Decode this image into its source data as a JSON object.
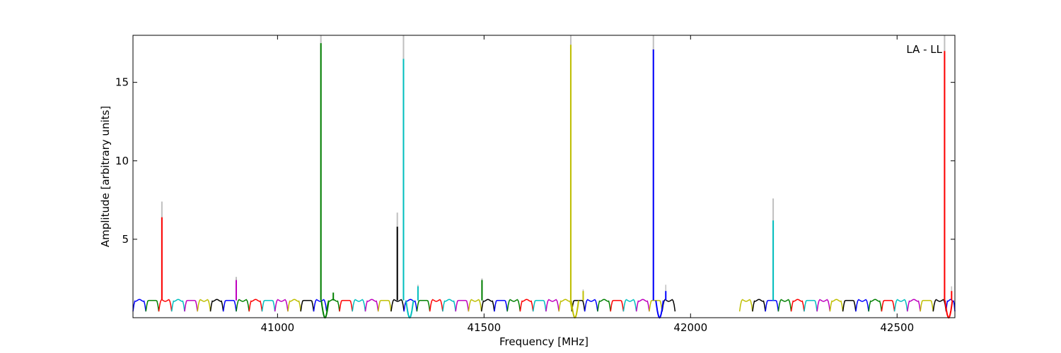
{
  "chart_data": {
    "type": "line",
    "title": "",
    "annotation": "LA - LL",
    "annotation_position": "top-right",
    "xlabel": "Frequency [MHz]",
    "ylabel": "Amplitude [arbitrary units]",
    "xlim": [
      40650,
      42640
    ],
    "ylim": [
      0,
      18
    ],
    "xticks": [
      41000,
      41500,
      42000,
      42500
    ],
    "xtick_labels": [
      "41000",
      "41500",
      "42000",
      "42500"
    ],
    "yticks": [
      5,
      10,
      15
    ],
    "ytick_labels": [
      "5",
      "10",
      "15"
    ],
    "grid": false,
    "legend": "none",
    "colors": {
      "axes": "#000000",
      "gray_overlay": "#bfbfbf",
      "series_cycle": [
        "#0000ff",
        "#008000",
        "#ff0000",
        "#00bfbf",
        "#bf00bf",
        "#bfbf00",
        "#000000"
      ]
    },
    "baseline": {
      "channel_width_mhz": 31.25,
      "high_level": 1.1,
      "dip_level": 0.4,
      "gaps": [
        [
          41950,
          42130
        ]
      ]
    },
    "spikes": [
      {
        "x": 40720,
        "value": 6.4,
        "gray_peak": 7.4,
        "color": "#ff0000"
      },
      {
        "x": 40900,
        "value": 2.4,
        "gray_peak": 2.6,
        "color": "#bf00bf"
      },
      {
        "x": 41105,
        "value": 17.5,
        "gray_peak": 18.0,
        "color": "#008000"
      },
      {
        "x": 41290,
        "value": 5.8,
        "gray_peak": 6.7,
        "color": "#000000"
      },
      {
        "x": 41305,
        "value": 16.5,
        "gray_peak": 18.0,
        "color": "#00bfbf"
      },
      {
        "x": 41495,
        "value": 2.4,
        "gray_peak": 2.5,
        "color": "#008000"
      },
      {
        "x": 41710,
        "value": 17.4,
        "gray_peak": 18.0,
        "color": "#bfbf00"
      },
      {
        "x": 41910,
        "value": 17.1,
        "gray_peak": 18.0,
        "color": "#0000ff"
      },
      {
        "x": 42200,
        "value": 6.2,
        "gray_peak": 7.6,
        "color": "#00bfbf"
      },
      {
        "x": 42615,
        "value": 17.0,
        "gray_peak": 18.0,
        "color": "#ff0000"
      }
    ],
    "small_bumps": [
      {
        "x": 41135,
        "value": 1.6,
        "color": "#008000"
      },
      {
        "x": 41340,
        "value": 2.0,
        "gray_peak": 2.1,
        "color": "#00bfbf"
      },
      {
        "x": 41740,
        "value": 1.7,
        "gray_peak": 1.8,
        "color": "#bfbf00"
      },
      {
        "x": 41940,
        "value": 1.7,
        "gray_peak": 2.1,
        "color": "#0000ff"
      },
      {
        "x": 42632,
        "value": 1.7,
        "gray_peak": 2.0,
        "color": "#ff0000"
      }
    ],
    "deep_dips": [
      {
        "x": 41115,
        "value": 0.0,
        "color": "#008000"
      },
      {
        "x": 41320,
        "value": 0.0,
        "color": "#00bfbf"
      },
      {
        "x": 41720,
        "value": 0.0,
        "color": "#bfbf00"
      },
      {
        "x": 41925,
        "value": 0.0,
        "color": "#0000ff"
      },
      {
        "x": 42625,
        "value": 0.0,
        "color": "#ff0000"
      }
    ]
  }
}
